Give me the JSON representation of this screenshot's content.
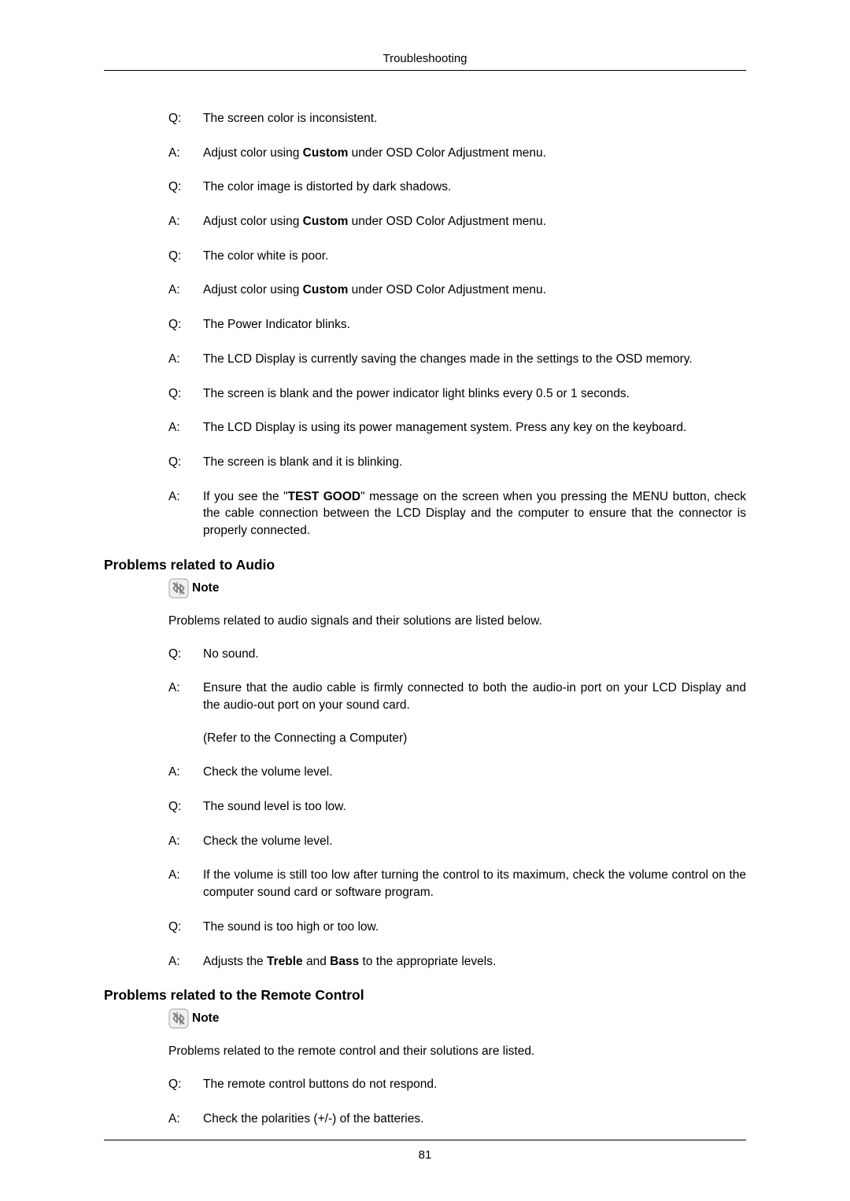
{
  "header": {
    "title": "Troubleshooting"
  },
  "qa1": [
    {
      "label": "Q:",
      "text": "The screen color is inconsistent."
    },
    {
      "label": "A:",
      "parts": [
        {
          "t": "Adjust color using "
        },
        {
          "t": "Custom",
          "b": true
        },
        {
          "t": " under OSD Color Adjustment menu."
        }
      ]
    },
    {
      "label": "Q:",
      "text": "The color image is distorted by dark shadows."
    },
    {
      "label": "A:",
      "parts": [
        {
          "t": "Adjust color using "
        },
        {
          "t": "Custom",
          "b": true
        },
        {
          "t": " under OSD Color Adjustment menu."
        }
      ]
    },
    {
      "label": "Q:",
      "text": "The color white is poor."
    },
    {
      "label": "A:",
      "parts": [
        {
          "t": "Adjust color using "
        },
        {
          "t": "Custom",
          "b": true
        },
        {
          "t": " under OSD Color Adjustment menu."
        }
      ]
    },
    {
      "label": "Q:",
      "text": "The Power Indicator blinks."
    },
    {
      "label": "A:",
      "text": "The LCD Display is currently saving the changes made in the settings to the OSD memory."
    },
    {
      "label": "Q:",
      "text": "The screen is blank and the power indicator light blinks every 0.5 or 1 seconds."
    },
    {
      "label": "A:",
      "text": "The LCD Display is using its power management system. Press any key on the keyboard."
    },
    {
      "label": "Q:",
      "text": "The screen is blank and it is blinking."
    },
    {
      "label": "A:",
      "parts": [
        {
          "t": "If you see the \""
        },
        {
          "t": "TEST GOOD",
          "b": true
        },
        {
          "t": "\" message on the screen when you pressing the MENU button, check the cable connection between the LCD Display and the computer to ensure that the connector is properly connected."
        }
      ]
    }
  ],
  "section1": {
    "heading": "Problems related to Audio",
    "note": "Note",
    "intro": "Problems related to audio signals and their solutions are listed below."
  },
  "qa2": [
    {
      "label": "Q:",
      "text": "No sound."
    },
    {
      "label": "A:",
      "text": "Ensure that the audio cable is firmly connected to both the audio-in port on your LCD Display and the audio-out port on your sound card.",
      "sub": "(Refer to the Connecting a Computer)"
    },
    {
      "label": "A:",
      "text": "Check the volume level."
    },
    {
      "label": "Q:",
      "text": "The sound level is too low."
    },
    {
      "label": "A:",
      "text": "Check the volume level."
    },
    {
      "label": "A:",
      "text": "If the volume is still too low after turning the control to its maximum, check the volume control on the computer sound card or software program."
    },
    {
      "label": "Q:",
      "text": "The sound is too high or too low."
    },
    {
      "label": "A:",
      "parts": [
        {
          "t": "Adjusts the "
        },
        {
          "t": "Treble",
          "b": true
        },
        {
          "t": " and "
        },
        {
          "t": "Bass",
          "b": true
        },
        {
          "t": " to the appropriate levels."
        }
      ]
    }
  ],
  "section2": {
    "heading": "Problems related to the Remote Control",
    "note": "Note",
    "intro": "Problems related to the remote control and their solutions are listed."
  },
  "qa3": [
    {
      "label": "Q:",
      "text": "The remote control buttons do not respond."
    },
    {
      "label": "A:",
      "text": "Check the polarities (+/-) of the batteries."
    }
  ],
  "footer": {
    "page": "81"
  },
  "colors": {
    "text": "#000000",
    "background": "#ffffff",
    "icon_bg": "#f0f0f0",
    "icon_border": "#b0b0b0",
    "icon_stroke": "#808080"
  }
}
